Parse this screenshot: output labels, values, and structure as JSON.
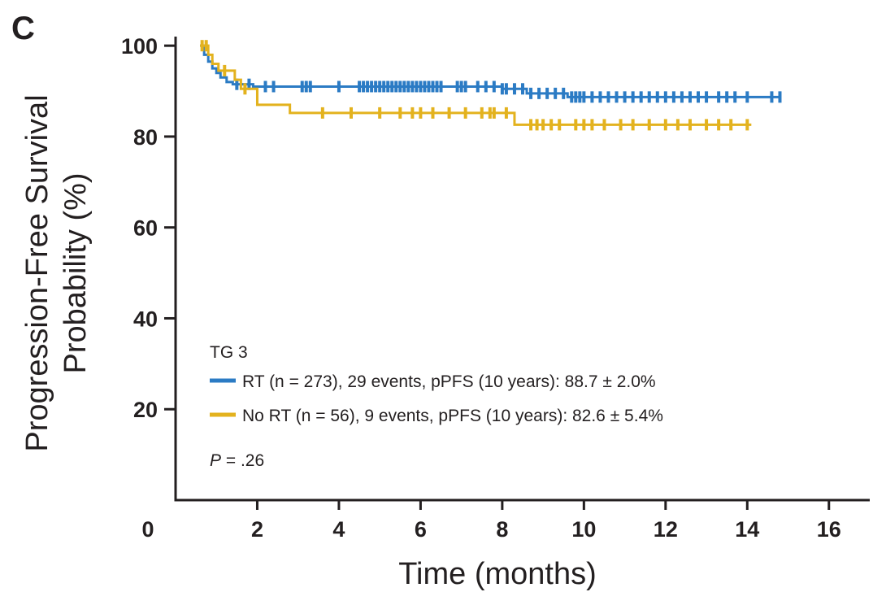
{
  "chart_data": {
    "type": "line",
    "panel_label": "C",
    "ylabel_line1": "Progression-Free Survival",
    "ylabel_line2": "Probability (%)",
    "xlabel": "Time (months)",
    "xlim": [
      0,
      17
    ],
    "ylim": [
      0,
      102
    ],
    "x_ticks": [
      "0",
      "2",
      "4",
      "6",
      "8",
      "10",
      "12",
      "14",
      "16"
    ],
    "y_ticks": [
      "20",
      "40",
      "60",
      "80",
      "100"
    ],
    "legend_title": "TG 3",
    "p_value": {
      "label": "P",
      "value": " = .26"
    },
    "series": [
      {
        "name": "RT (n = 273), 29 events, pPFS (10 years): 88.7 ± 2.0%",
        "color": "#2b7bc4",
        "steps": [
          [
            0.6,
            100
          ],
          [
            0.7,
            98
          ],
          [
            0.8,
            96.5
          ],
          [
            0.9,
            95
          ],
          [
            1.0,
            94
          ],
          [
            1.1,
            93
          ],
          [
            1.25,
            92
          ],
          [
            1.4,
            91.5
          ],
          [
            1.7,
            91.5
          ],
          [
            1.9,
            91
          ],
          [
            8.0,
            90.5
          ],
          [
            8.6,
            89.5
          ],
          [
            9.6,
            88.7
          ],
          [
            14.8,
            88.7
          ]
        ],
        "censor_x": [
          1.5,
          1.8,
          2.2,
          2.4,
          3.1,
          3.2,
          3.3,
          4.0,
          4.5,
          4.6,
          4.7,
          4.8,
          4.9,
          5.0,
          5.1,
          5.2,
          5.3,
          5.4,
          5.5,
          5.6,
          5.7,
          5.8,
          5.9,
          6.0,
          6.1,
          6.2,
          6.3,
          6.4,
          6.5,
          6.9,
          7.0,
          7.1,
          7.4,
          7.6,
          7.8,
          8.0,
          8.1,
          8.3,
          8.5,
          8.7,
          8.9,
          9.1,
          9.3,
          9.5,
          9.7,
          9.8,
          9.9,
          10.0,
          10.2,
          10.4,
          10.6,
          10.8,
          11.0,
          11.2,
          11.4,
          11.6,
          11.8,
          12.0,
          12.2,
          12.4,
          12.6,
          12.8,
          13.0,
          13.3,
          13.5,
          13.7,
          14.0,
          14.6,
          14.8
        ]
      },
      {
        "name": "No RT (n = 56), 9 events, pPFS (10 years): 82.6 ± 5.4%",
        "color": "#e3b21e",
        "steps": [
          [
            0.6,
            100
          ],
          [
            0.8,
            98
          ],
          [
            0.9,
            96
          ],
          [
            1.05,
            94.5
          ],
          [
            1.45,
            92.5
          ],
          [
            1.6,
            90.5
          ],
          [
            2.0,
            87
          ],
          [
            2.8,
            85.2
          ],
          [
            8.3,
            82.6
          ],
          [
            14.1,
            82.6
          ]
        ],
        "censor_x": [
          0.65,
          0.75,
          1.2,
          1.7,
          3.6,
          4.3,
          5.0,
          5.5,
          5.8,
          6.0,
          6.3,
          6.7,
          7.1,
          7.5,
          7.7,
          7.8,
          8.1,
          8.7,
          8.85,
          9.0,
          9.2,
          9.4,
          9.8,
          10.0,
          10.2,
          10.5,
          10.9,
          11.2,
          11.6,
          12.0,
          12.3,
          12.6,
          13.0,
          13.3,
          13.6,
          14.0
        ]
      }
    ]
  }
}
